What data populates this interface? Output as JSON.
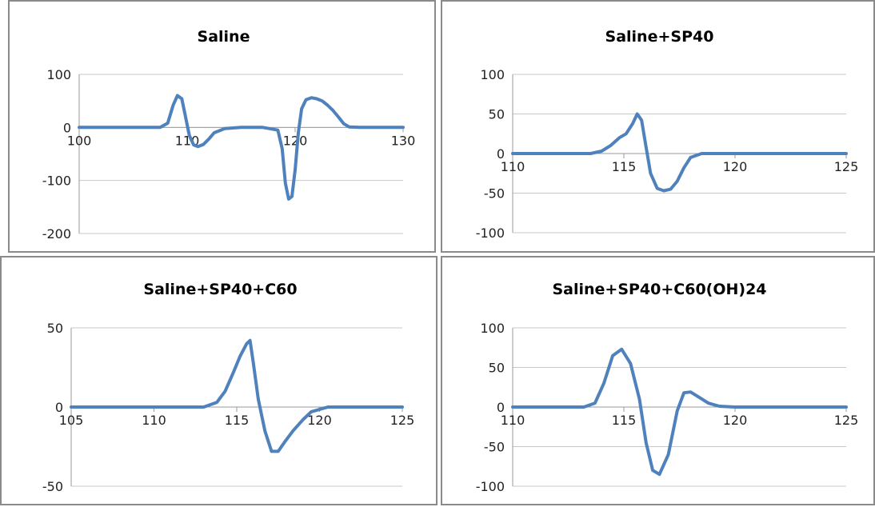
{
  "colors": {
    "series": "#4f81bd"
  },
  "chart_data": [
    {
      "type": "line",
      "title": "Saline",
      "xlim": [
        100,
        130
      ],
      "ylim": [
        -200,
        100
      ],
      "x_ticks": [
        "100",
        "110",
        "120",
        "130"
      ],
      "y_ticks": [
        "100",
        "0",
        "-100",
        "-200"
      ],
      "grid": true,
      "series": [
        {
          "x": [
            100,
            107.5,
            108.2,
            108.7,
            109.1,
            109.5,
            109.8,
            110.2,
            110.6,
            111.0,
            111.5,
            112.0,
            112.5,
            113.5,
            115.0,
            117.0,
            118.4,
            118.8,
            119.1,
            119.4,
            119.7,
            120.0,
            120.3,
            120.6,
            121.0,
            121.5,
            122.0,
            122.5,
            123.0,
            123.5,
            124.0,
            124.5,
            125.0,
            126.0,
            130
          ],
          "y": [
            0,
            0,
            8,
            42,
            60,
            54,
            25,
            -15,
            -33,
            -36,
            -32,
            -22,
            -10,
            -2,
            0,
            0,
            -5,
            -40,
            -105,
            -135,
            -130,
            -80,
            -10,
            35,
            52,
            56,
            54,
            50,
            42,
            32,
            20,
            7,
            1,
            0,
            0
          ]
        }
      ]
    },
    {
      "type": "line",
      "title": "Saline+SP40",
      "xlim": [
        110,
        125
      ],
      "ylim": [
        -100,
        100
      ],
      "x_ticks": [
        "110",
        "115",
        "120",
        "125"
      ],
      "y_ticks": [
        "100",
        "50",
        "0",
        "-50",
        "-100"
      ],
      "grid": true,
      "series": [
        {
          "x": [
            110,
            113.5,
            114.0,
            114.4,
            114.8,
            115.1,
            115.4,
            115.6,
            115.8,
            116.0,
            116.2,
            116.5,
            116.8,
            117.1,
            117.4,
            117.7,
            118.0,
            118.5,
            119.5,
            125
          ],
          "y": [
            0,
            0,
            3,
            10,
            20,
            25,
            38,
            50,
            42,
            8,
            -25,
            -44,
            -47,
            -45,
            -35,
            -18,
            -5,
            0,
            0,
            0
          ]
        }
      ]
    },
    {
      "type": "line",
      "title": "Saline+SP40+C60",
      "xlim": [
        105,
        125
      ],
      "ylim": [
        -50,
        50
      ],
      "x_ticks": [
        "105",
        "110",
        "115",
        "120",
        "125"
      ],
      "y_ticks": [
        "50",
        "0",
        "-50"
      ],
      "grid": true,
      "series": [
        {
          "x": [
            105,
            113.0,
            113.8,
            114.3,
            114.8,
            115.2,
            115.6,
            115.8,
            116.0,
            116.3,
            116.7,
            117.1,
            117.5,
            117.9,
            118.4,
            119.0,
            119.5,
            120.5,
            125
          ],
          "y": [
            0,
            0,
            3,
            10,
            22,
            32,
            40,
            42,
            28,
            5,
            -15,
            -28,
            -28,
            -22,
            -15,
            -8,
            -3,
            0,
            0
          ]
        }
      ]
    },
    {
      "type": "line",
      "title": "Saline+SP40+C60(OH)24",
      "xlim": [
        110,
        125
      ],
      "ylim": [
        -100,
        100
      ],
      "x_ticks": [
        "110",
        "115",
        "120",
        "125"
      ],
      "y_ticks": [
        "100",
        "50",
        "0",
        "-50",
        "-100"
      ],
      "grid": true,
      "series": [
        {
          "x": [
            110,
            113.2,
            113.7,
            114.1,
            114.5,
            114.9,
            115.3,
            115.7,
            116.0,
            116.3,
            116.6,
            117.0,
            117.4,
            117.7,
            118.0,
            118.4,
            118.8,
            119.3,
            120.0,
            125
          ],
          "y": [
            0,
            0,
            5,
            30,
            65,
            73,
            55,
            10,
            -45,
            -80,
            -85,
            -60,
            -5,
            18,
            19,
            12,
            5,
            1,
            0,
            0
          ]
        }
      ]
    }
  ]
}
